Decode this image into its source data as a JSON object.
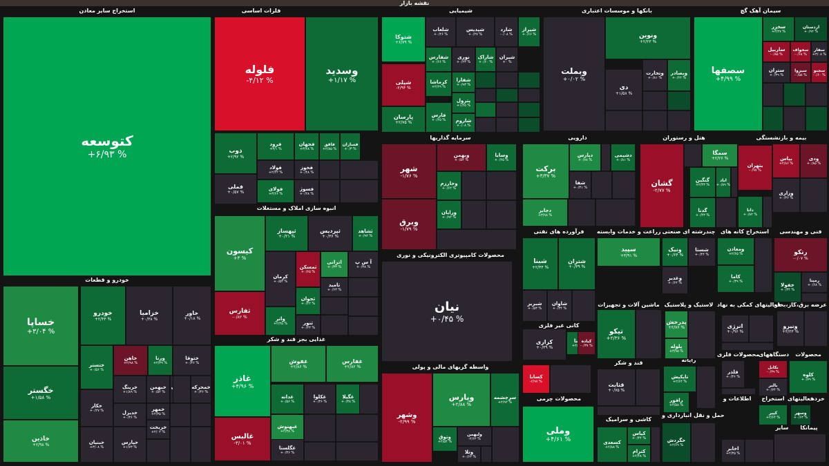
{
  "header": {
    "title": "نقشه بازار"
  },
  "sectors": [
    {
      "key": "s1",
      "title": "استخراج سایر معادن"
    },
    {
      "key": "s2",
      "title": "فلزات اساسی"
    },
    {
      "key": "s3",
      "title": "شیمیایی"
    },
    {
      "key": "s4",
      "title": "بانکها و موسسات اعتباری"
    },
    {
      "key": "s5",
      "title": "سیمان آهک گچ"
    },
    {
      "key": "s6",
      "title": "خودرو و قطعات"
    },
    {
      "key": "s7",
      "title": "انبوه سازی املاک و مستغلات"
    },
    {
      "key": "s8",
      "title": "سرمایه گذاریها"
    },
    {
      "key": "s9",
      "title": "دارویی"
    },
    {
      "key": "s10",
      "title": "هتل و رستوران"
    },
    {
      "key": "s11",
      "title": "بیمه و بازنشستگی"
    },
    {
      "key": "s12",
      "title": "محصولات کامپیوتری الکترونیکی و نوری"
    },
    {
      "key": "s13",
      "title": "فرآورده های نفتی"
    },
    {
      "key": "s14",
      "title": "زراعت و خدمات وابسته"
    },
    {
      "key": "s15",
      "title": "چندرشته ای صنعتی"
    },
    {
      "key": "s16",
      "title": "استخراج کانه های"
    },
    {
      "key": "s17",
      "title": "فنی و مهندسی"
    },
    {
      "key": "s18",
      "title": "غذایی بجز قند و شکر"
    },
    {
      "key": "s19",
      "title": "کانی غیر فلزی"
    },
    {
      "key": "s20",
      "title": "ماشین آلات و تجهیزات"
    },
    {
      "key": "s21",
      "title": "لاستیک و پلاستیک"
    },
    {
      "key": "s22",
      "title": "فعالیتهای کمکی به نهاد"
    },
    {
      "key": "s23",
      "title": "عرضه برق،گاز،بخار"
    },
    {
      "key": "s24",
      "title": "واسطه گریهای مالی و پولی"
    },
    {
      "key": "s25",
      "title": "قند و شکر"
    },
    {
      "key": "s26",
      "title": "رایانه"
    },
    {
      "key": "s27",
      "title": "محصولات فلزی"
    },
    {
      "key": "s28",
      "title": "دستگاههای"
    },
    {
      "key": "s29",
      "title": "محصولات"
    },
    {
      "key": "s30",
      "title": "محصولات چرمی"
    },
    {
      "key": "s31",
      "title": "کاشی و سرامیک"
    },
    {
      "key": "s32",
      "title": "حمل و نقل انبارداری و"
    },
    {
      "key": "s33",
      "title": "اطلاعات و"
    },
    {
      "key": "s34",
      "title": "استخراج"
    },
    {
      "key": "s35",
      "title": "فعالیتهای"
    },
    {
      "key": "s36",
      "title": "خرده"
    },
    {
      "key": "s37",
      "title": "سایر"
    },
    {
      "key": "s38",
      "title": "پیمانکا"
    }
  ],
  "tiles": [
    {
      "name": "کتوسعه",
      "change": "+۶/۹۳ %"
    },
    {
      "name": "فلوله",
      "change": "-۴/۱۲ %"
    },
    {
      "name": "وسدید",
      "change": "+۱/۱۷ %"
    },
    {
      "name": "شتوکا",
      "change": "+۶/۷۹ %"
    },
    {
      "name": "شلعاب",
      "change": "+۰/۲۶ %"
    },
    {
      "name": "شپدیس",
      "change": "+۰/۲۷ %"
    },
    {
      "name": "شارد",
      "change": "-۰/۰۸ %"
    },
    {
      "name": "شیراز",
      "change": "+۰/۶۶ %"
    },
    {
      "name": "شفارس",
      "change": "+۰/۶۶ %"
    },
    {
      "name": "نوری",
      "change": "+۰/۲۳ %"
    },
    {
      "name": "شاراک",
      "change": "+۰/۶۰ %"
    },
    {
      "name": "شیران",
      "change": "+۰ %"
    },
    {
      "name": "شپلی",
      "change": "-۲/۹۴ %"
    },
    {
      "name": "کرماشا",
      "change": "+۲/۶۹ %"
    },
    {
      "name": "شفارا",
      "change": "+۰/۹۳ %"
    },
    {
      "name": "پترول",
      "change": "+۱/۲۵ %"
    },
    {
      "name": "شاروم",
      "change": "+۰/۰۸ %"
    },
    {
      "name": "پارسان",
      "change": "+۲/۷۵ %"
    },
    {
      "name": "فارس",
      "change": "+۰/۲۵ %"
    },
    {
      "name": "وبملت",
      "change": "+۰/۰۲ %"
    },
    {
      "name": "ونوین",
      "change": "+۲/۲۳ %"
    },
    {
      "name": "وتجارت",
      "change": "+۰/۸۱ %"
    },
    {
      "name": "وبصادر",
      "change": "+۰/۶۲ %"
    },
    {
      "name": "دی",
      "change": "+۱/۵۸ %"
    },
    {
      "name": "سصفها",
      "change": "+۴/۹۹ %"
    },
    {
      "name": "سخزر",
      "change": "+۳/۲۷ %"
    },
    {
      "name": "اردستان",
      "change": "+۰/۹۲ %"
    },
    {
      "name": "ساربیل",
      "change": "-۰/۸۵ %"
    },
    {
      "name": "سخواف",
      "change": "-۰/۶۸ %"
    },
    {
      "name": "سفار",
      "change": "+۳/۰۸ %"
    },
    {
      "name": "ستران",
      "change": "+۰/۳۹ %"
    },
    {
      "name": "سیزوا",
      "change": "-۰/۵۸ %"
    },
    {
      "name": "سجنو",
      "change": "-۰/۶۰ %"
    },
    {
      "name": "خساپا",
      "change": "+۳/۰۴ %"
    },
    {
      "name": "خودرو",
      "change": "+۲/۴۴ %"
    },
    {
      "name": "خزامیا",
      "change": "+۰/۳۸ %"
    },
    {
      "name": "خاور",
      "change": "+۰/۱۸ %"
    },
    {
      "name": "خگستر",
      "change": "+۱/۵۸ %"
    },
    {
      "name": "خاذین",
      "change": "+۲/۹۸ %"
    },
    {
      "name": "ختستر",
      "change": "+۰/۵۶ %"
    },
    {
      "name": "خاهن",
      "change": "+۲/۹۸ %"
    },
    {
      "name": "ورنا",
      "change": "+۲/۳۹ %"
    },
    {
      "name": "ختوقا",
      "change": "+۰/۳۶ %"
    },
    {
      "name": "خکار",
      "change": "+۰/۲۷ %"
    },
    {
      "name": "خرینگ",
      "change": "+۱/۸۹ %"
    },
    {
      "name": "خبهمن",
      "change": "+۰/۵۲ %"
    },
    {
      "name": "خکرمان",
      "change": "+۰/۳۶ %"
    },
    {
      "name": "خمحرکه",
      "change": "+۰/۳۶ %"
    },
    {
      "name": "خدیزل",
      "change": "+۰/۳۶ %"
    },
    {
      "name": "خمهر",
      "change": "+۲/۳۵ %"
    },
    {
      "name": "خریخت",
      "change": "+۲/۰۲ %"
    },
    {
      "name": "خبنیان",
      "change": "+۳/۰۸ %"
    },
    {
      "name": "خپارس",
      "change": "+۱/۷۳ %"
    },
    {
      "name": "ذوب",
      "change": "+۲/۹۲ %"
    },
    {
      "name": "فرود",
      "change": "+۳/۱ %"
    },
    {
      "name": "فجهان",
      "change": "+۳/۲۸ %"
    },
    {
      "name": "فاقق",
      "change": "+۲/۸۵ %"
    },
    {
      "name": "فسازان",
      "change": "+۰/۳ %"
    },
    {
      "name": "فولاد",
      "change": "+۲/۲۲ %"
    },
    {
      "name": "فخوز",
      "change": "+۰/۴۸ %"
    },
    {
      "name": "فملی",
      "change": "+۰/۵۷ %"
    },
    {
      "name": "فولای",
      "change": "+۳/۶۶ %"
    },
    {
      "name": "فسوژ",
      "change": "+۰/۲۸ %"
    },
    {
      "name": "کیسون",
      "change": "+۳ %"
    },
    {
      "name": "ثپهساز",
      "change": "+۰/۲۱ %"
    },
    {
      "name": "ثپردیس",
      "change": "+۰/۳۶ %"
    },
    {
      "name": "ثشاهد",
      "change": "+۰/۹۲ %"
    },
    {
      "name": "کرمان",
      "change": "+۰/۵۳ %"
    },
    {
      "name": "ثمسکن",
      "change": "+۰/۶۵ %"
    },
    {
      "name": "اترانی",
      "change": "+۰/۳۳ %"
    },
    {
      "name": "آ س پ",
      "change": "+۰/۳۸ %"
    },
    {
      "name": "ثامید",
      "change": "+۰/۶۳ %"
    },
    {
      "name": "ثفارس",
      "change": "-۰/۸۲ %"
    },
    {
      "name": "واتر",
      "change": "+۲/۲۵ %"
    },
    {
      "name": "ثجوان",
      "change": "+۰/۴۲ %"
    },
    {
      "name": "ثنور",
      "change": "+۰/۴۳ %"
    },
    {
      "name": "شهر",
      "change": "-۱/۷۶ %"
    },
    {
      "name": "وبهمن",
      "change": "+۰/۵۴ %"
    },
    {
      "name": "وسایا",
      "change": "+۰/۲۵ %"
    },
    {
      "name": "وخارزم",
      "change": "+۰/۶۲ %"
    },
    {
      "name": "ورایان",
      "change": "+۰/۹۲ %"
    },
    {
      "name": "وبرق",
      "change": "-۱/۷۹ %"
    },
    {
      "name": "برکت",
      "change": "+۳/۳۷ %"
    },
    {
      "name": "دپارس",
      "change": "+۰/۷۸ %"
    },
    {
      "name": "دشیمی",
      "change": "+۰/۸۱ %"
    },
    {
      "name": "شفا",
      "change": "+۰/۳۱ %"
    },
    {
      "name": "دجابر",
      "change": "+۳/۹۸ %"
    },
    {
      "name": "گشان",
      "change": "-۲/۷۷ %"
    },
    {
      "name": "سمگا",
      "change": "+۲/۲۶ %"
    },
    {
      "name": "گنگین",
      "change": "+۲/۴۳ %"
    },
    {
      "name": "اباد",
      "change": "+۰/۸۹ %"
    },
    {
      "name": "گدنا",
      "change": "+۰/۴۳ %"
    },
    {
      "name": "بپاس",
      "change": "+۲/۸۶ %"
    },
    {
      "name": "ودی",
      "change": "+۰/۸۵ %"
    },
    {
      "name": "بتهران",
      "change": "-۰/۹۷ %"
    },
    {
      "name": "وزاری",
      "change": "+۰/۳۶ %"
    },
    {
      "name": "دانا",
      "change": "+۰/۸۲ %"
    },
    {
      "name": "نیان",
      "change": "+۰/۴۵ %"
    },
    {
      "name": "شبنا",
      "change": "+۲/۴۴ %"
    },
    {
      "name": "شتران",
      "change": "+۰/۳۹ %"
    },
    {
      "name": "شبریز",
      "change": "+۰/۵۳ %"
    },
    {
      "name": "شاوان",
      "change": "+۰/۳۴ %"
    },
    {
      "name": "سپید",
      "change": "+۳/۹۱ %"
    },
    {
      "name": "ونیک",
      "change": "+۰/۶۴ %"
    },
    {
      "name": "شستا",
      "change": "+۰/۴۴ %"
    },
    {
      "name": "وغدیر",
      "change": "+۰/۶۲ %"
    },
    {
      "name": "ومعادن",
      "change": "+۲/۶۵ %"
    },
    {
      "name": "کاما",
      "change": "+۰/۳۹ %"
    },
    {
      "name": "رتکو",
      "change": "-۰/۰۷ %"
    },
    {
      "name": "خفولا",
      "change": "+۰/۳۴ %"
    },
    {
      "name": "رمپنا",
      "change": "+۰/۶۸ %"
    },
    {
      "name": "غاذر",
      "change": "+۴/۹۶ %"
    },
    {
      "name": "غفوش",
      "change": "+۲/۸۶ %"
    },
    {
      "name": "غفارس",
      "change": "+۲/۸۲ %"
    },
    {
      "name": "غدانه",
      "change": "+۰/۵۶ %"
    },
    {
      "name": "غکلوا",
      "change": "+۰/۳۶ %"
    },
    {
      "name": "غگیلا",
      "change": "+۰/۳۸ %"
    },
    {
      "name": "غبهنوش",
      "change": "+۲/۳۸ %"
    },
    {
      "name": "غالبس",
      "change": "-۳/۰۱ %"
    },
    {
      "name": "غگلستا",
      "change": "+۰/۳۶ %"
    },
    {
      "name": "کرازی",
      "change": "+۰/۳۹ %"
    },
    {
      "name": "کمنا",
      "change": "+۲/۳۶ %"
    },
    {
      "name": "کباده",
      "change": "-۰/۳۷ %"
    },
    {
      "name": "کسابا",
      "change": "-۲/۹۷ %"
    },
    {
      "name": "تیکو",
      "change": "+۲/۳۶ %"
    },
    {
      "name": "پدرخش",
      "change": "+۲/۷۶ %"
    },
    {
      "name": "پلوله",
      "change": "+۳/۹۸ %"
    },
    {
      "name": "انرژی",
      "change": "+۰/۹۶ %"
    },
    {
      "name": "ونیرو",
      "change": "+۳/۲۳ %"
    },
    {
      "name": "وشهر",
      "change": "-۲/۹۹ %"
    },
    {
      "name": "وپارس",
      "change": "+۲/۸۸ %"
    },
    {
      "name": "سرچشمه",
      "change": "+۲/۹۲ %"
    },
    {
      "name": "ولبهمن",
      "change": "-۲/۶۲ %"
    },
    {
      "name": "وتوق",
      "change": "+۲/۵۴ %"
    },
    {
      "name": "وتلا",
      "change": "+۰/۶۳ %"
    },
    {
      "name": "قثابت",
      "change": "+۰/۷۵ %"
    },
    {
      "name": "تاپکیش",
      "change": "+۲/۶۴ %"
    },
    {
      "name": "رافور",
      "change": "+۲/۵۸ %"
    },
    {
      "name": "فلذر",
      "change": "+۰/۳۶ %"
    },
    {
      "name": "بکابل",
      "change": "-۰/۳۹ %"
    },
    {
      "name": "بالبر",
      "change": "+۰/۷۴ %"
    },
    {
      "name": "کلوه",
      "change": "+۰/۷۹ %"
    },
    {
      "name": "وملی",
      "change": "+۴/۶۱ %"
    },
    {
      "name": "کسعدی",
      "change": "+۲/۸۸ %"
    },
    {
      "name": "کیاس",
      "change": "+۰/۴۴ %"
    },
    {
      "name": "کترام",
      "change": "+۲/۴۸ %"
    },
    {
      "name": "حگردش",
      "change": "+۲/۶۹ %"
    },
    {
      "name": "کپیر",
      "change": "+۲/۶۴ %"
    },
    {
      "name": "وسهر",
      "change": "+۰/۶۳ %"
    },
    {
      "name": "اخابر",
      "change": "+۲/۳۵ %"
    }
  ],
  "colors": {
    "strong_green": "#00a651",
    "green": "#1e8a44",
    "dark_green": "#0b4d2a",
    "neutral": "#2b2630",
    "red": "#d8102a",
    "dark_red": "#6c1428"
  }
}
